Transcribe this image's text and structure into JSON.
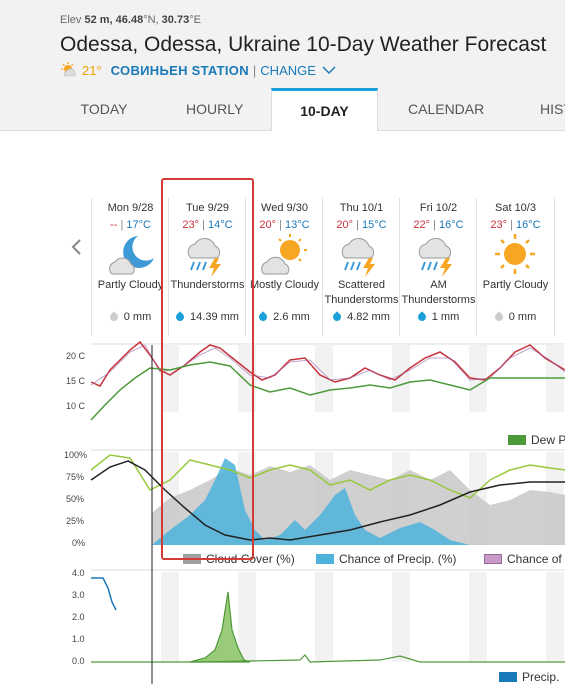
{
  "location": {
    "elev_label": "Elev",
    "elev_value": "52 m,",
    "lat": "46.48",
    "lat_suffix": "°N,",
    "lon": "30.73",
    "lon_suffix": "°E",
    "title": "Odessa, Odessa, Ukraine 10-Day Weather Forecast",
    "current_temp": "21°",
    "station_name": "СОВИНЬЕН STATION",
    "separator": "|",
    "change_label": "CHANGE"
  },
  "tabs": [
    "TODAY",
    "HOURLY",
    "10-DAY",
    "CALENDAR",
    "HIST"
  ],
  "active_tab": "10-DAY",
  "days": [
    {
      "date": "Mon 9/28",
      "high": "--",
      "low": "17°C",
      "icon": "partly-cloudy-night-icon",
      "cond": [
        "Partly Cloudy"
      ],
      "precip": "0 mm",
      "drop": "gray"
    },
    {
      "date": "Tue 9/29",
      "high": "23°",
      "low": "14°C",
      "icon": "thunderstorm-icon",
      "cond": [
        "Thunderstorms"
      ],
      "precip": "14.39 mm",
      "drop": "blue"
    },
    {
      "date": "Wed 9/30",
      "high": "20°",
      "low": "13°C",
      "icon": "partly-cloudy-day-icon",
      "cond": [
        "Mostly Cloudy"
      ],
      "precip": "2.6 mm",
      "drop": "blue"
    },
    {
      "date": "Thu 10/1",
      "high": "20°",
      "low": "15°C",
      "icon": "thunderstorm-icon",
      "cond": [
        "Scattered",
        "Thunderstorms"
      ],
      "precip": "4.82 mm",
      "drop": "blue"
    },
    {
      "date": "Fri 10/2",
      "high": "22°",
      "low": "16°C",
      "icon": "thunderstorm-icon",
      "cond": [
        "AM",
        "Thunderstorms"
      ],
      "precip": "1 mm",
      "drop": "blue"
    },
    {
      "date": "Sat 10/3",
      "high": "23°",
      "low": "16°C",
      "icon": "sun-icon",
      "cond": [
        "Partly Cloudy"
      ],
      "precip": "0 mm",
      "drop": "gray"
    }
  ],
  "temp_chart": {
    "y_ticks": [
      "20 C",
      "15 C",
      "10 C"
    ],
    "legend": "Dew P",
    "colors": {
      "temp": "#c8323a",
      "dew": "#4e9a3a"
    }
  },
  "cloud_chart": {
    "y_ticks": [
      "100%",
      "75%",
      "50%",
      "25%",
      "0%"
    ],
    "legend": [
      "Cloud Cover (%)",
      "Chance of Precip. (%)",
      "Chance of"
    ],
    "colors": {
      "cloud": "#a0a0a0",
      "precip": "#4db3dc",
      "snow": "#c79ac8",
      "humidity": "#97c93d"
    }
  },
  "precip_chart": {
    "y_ticks": [
      "4.0",
      "3.0",
      "2.0",
      "1.0",
      "0.0"
    ],
    "legend": "Precip.",
    "colors": {
      "rain": "#4e9a3a",
      "accum": "#1a79b8"
    }
  },
  "highlight_color": "#d23c34"
}
